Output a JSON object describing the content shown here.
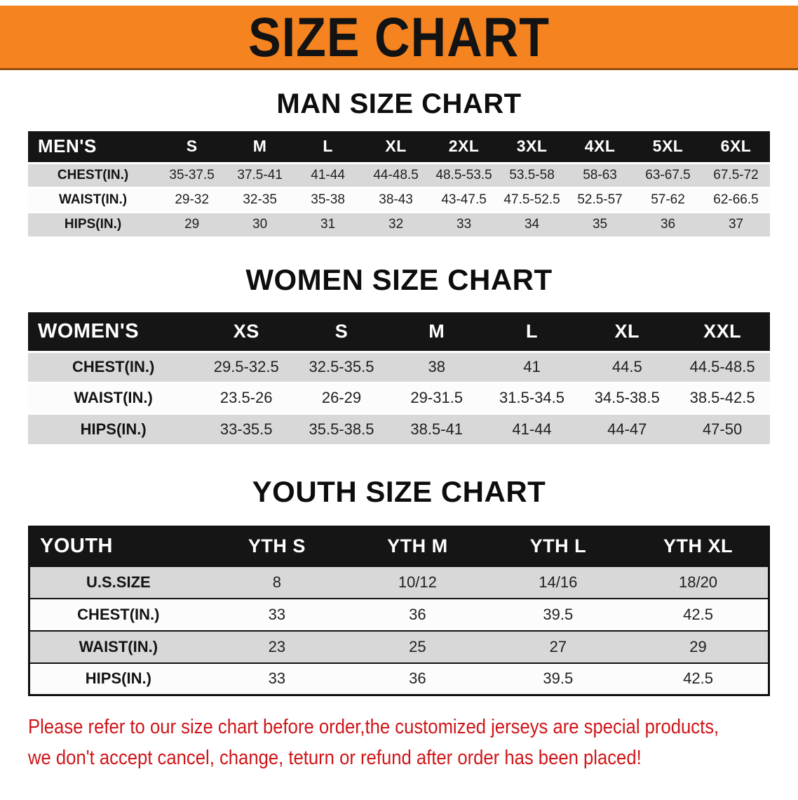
{
  "banner": {
    "title": "SIZE CHART",
    "bg_color": "#f5831f"
  },
  "sections": [
    {
      "id": "men",
      "title": "MAN SIZE CHART",
      "table": {
        "header": [
          "MEN'S",
          "S",
          "M",
          "L",
          "XL",
          "2XL",
          "3XL",
          "4XL",
          "5XL",
          "6XL"
        ],
        "rows": [
          [
            "CHEST(IN.)",
            "35-37.5",
            "37.5-41",
            "41-44",
            "44-48.5",
            "48.5-53.5",
            "53.5-58",
            "58-63",
            "63-67.5",
            "67.5-72"
          ],
          [
            "WAIST(IN.)",
            "29-32",
            "32-35",
            "35-38",
            "38-43",
            "43-47.5",
            "47.5-52.5",
            "52.5-57",
            "57-62",
            "62-66.5"
          ],
          [
            "HIPS(IN.)",
            "29",
            "30",
            "31",
            "32",
            "33",
            "34",
            "35",
            "36",
            "37"
          ]
        ]
      }
    },
    {
      "id": "women",
      "title": "WOMEN SIZE CHART",
      "table": {
        "header": [
          "WOMEN'S",
          "XS",
          "S",
          "M",
          "L",
          "XL",
          "XXL"
        ],
        "rows": [
          [
            "CHEST(IN.)",
            "29.5-32.5",
            "32.5-35.5",
            "38",
            "41",
            "44.5",
            "44.5-48.5"
          ],
          [
            "WAIST(IN.)",
            "23.5-26",
            "26-29",
            "29-31.5",
            "31.5-34.5",
            "34.5-38.5",
            "38.5-42.5"
          ],
          [
            "HIPS(IN.)",
            "33-35.5",
            "35.5-38.5",
            "38.5-41",
            "41-44",
            "44-47",
            "47-50"
          ]
        ]
      }
    },
    {
      "id": "youth",
      "title": "YOUTH SIZE CHART",
      "table": {
        "header": [
          "YOUTH",
          "YTH S",
          "YTH M",
          "YTH L",
          "YTH XL"
        ],
        "rows": [
          [
            "U.S.SIZE",
            "8",
            "10/12",
            "14/16",
            "18/20"
          ],
          [
            "CHEST(IN.)",
            "33",
            "36",
            "39.5",
            "42.5"
          ],
          [
            "WAIST(IN.)",
            "23",
            "25",
            "27",
            "29"
          ],
          [
            "HIPS(IN.)",
            "33",
            "36",
            "39.5",
            "42.5"
          ]
        ]
      }
    }
  ],
  "notice": {
    "color": "#d01519",
    "line1": "Please refer to our size chart before order,the customized jerseys are special products,",
    "line2": "we don't accept cancel, change, teturn or refund after order has been placed!"
  }
}
